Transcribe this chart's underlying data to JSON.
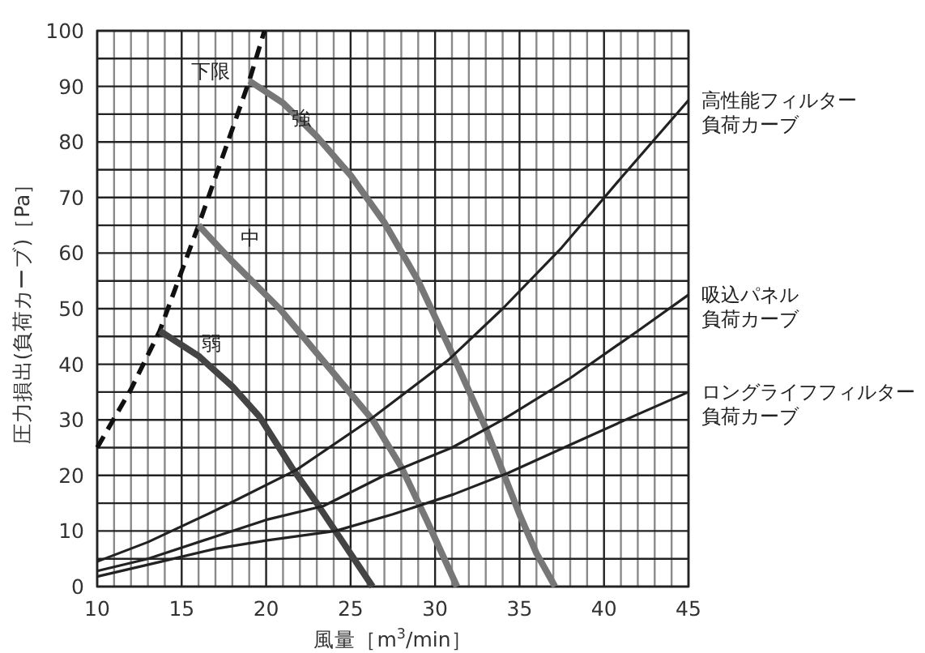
{
  "chart_data": {
    "type": "line",
    "xlabel": "風量［m$^{3}$/min］",
    "ylabel": "圧力損出(負荷カーブ)［Pa］",
    "xlim": [
      10,
      45
    ],
    "ylim": [
      0,
      100
    ],
    "xticks": [
      10,
      {
        "value": 11,
        "label": null
      },
      {
        "value": 12,
        "label": null
      },
      {
        "value": 13,
        "label": null
      },
      {
        "value": 14,
        "label": null
      },
      15,
      {
        "value": 16,
        "label": null
      },
      {
        "value": 17,
        "label": null
      },
      {
        "value": 18,
        "label": null
      },
      {
        "value": 19,
        "label": null
      },
      20,
      {
        "value": 21,
        "label": null
      },
      {
        "value": 22,
        "label": null
      },
      {
        "value": 23,
        "label": null
      },
      {
        "value": 24,
        "label": null
      },
      25,
      {
        "value": 26,
        "label": null
      },
      {
        "value": 27,
        "label": null
      },
      {
        "value": 28,
        "label": null
      },
      {
        "value": 29,
        "label": null
      },
      30,
      {
        "value": 31,
        "label": null
      },
      {
        "value": 32,
        "label": null
      },
      {
        "value": 33,
        "label": null
      },
      {
        "value": 34,
        "label": null
      },
      35,
      {
        "value": 36,
        "label": null
      },
      {
        "value": 37,
        "label": null
      },
      {
        "value": 38,
        "label": null
      },
      {
        "value": 39,
        "label": null
      },
      40,
      {
        "value": 41,
        "label": null
      },
      {
        "value": 42,
        "label": null
      },
      {
        "value": 43,
        "label": null
      },
      {
        "value": 44,
        "label": null
      },
      45
    ],
    "yticks": [
      0,
      {
        "value": 5,
        "label": null
      },
      10,
      {
        "value": 15,
        "label": null
      },
      20,
      {
        "value": 25,
        "label": null
      },
      30,
      {
        "value": 35,
        "label": null
      },
      40,
      {
        "value": 45,
        "label": null
      },
      50,
      {
        "value": 55,
        "label": null
      },
      60,
      {
        "value": 65,
        "label": null
      },
      70,
      {
        "value": 75,
        "label": null
      },
      80,
      {
        "value": 85,
        "label": null
      },
      90,
      {
        "value": 95,
        "label": null
      },
      100
    ],
    "grid": true,
    "marker": "none",
    "series": [
      {
        "name": "下限",
        "color": "#111111",
        "line_style": "dashed",
        "x": [
          10,
          12,
          13.7,
          16,
          19,
          19.9
        ],
        "values": [
          25,
          35.5,
          46,
          65,
          91,
          100
        ]
      },
      {
        "name": "強",
        "color": "#777777",
        "x": [
          19,
          21,
          23,
          25,
          27,
          29,
          31,
          33,
          35,
          36,
          37.1
        ],
        "values": [
          91,
          87,
          81,
          74,
          65.5,
          55,
          42,
          28.5,
          13,
          6,
          0
        ]
      },
      {
        "name": "中",
        "color": "#777777",
        "x": [
          16,
          18,
          20.8,
          23,
          26.3,
          28,
          29.5,
          31.3
        ],
        "values": [
          65,
          58.5,
          50,
          42,
          30,
          21.5,
          12,
          0
        ]
      },
      {
        "name": "弱",
        "color": "#444444",
        "x": [
          13.7,
          16,
          18,
          19.6,
          21.5,
          23,
          24.1,
          25.2,
          26.3
        ],
        "values": [
          46,
          41.5,
          36,
          30.6,
          21.5,
          15,
          10,
          5,
          0
        ]
      },
      {
        "name": "高性能フィルター負荷カーブ",
        "color": "#222222",
        "x": [
          10,
          13,
          17,
          21.8,
          26,
          30.8,
          34,
          37.5,
          41,
          45
        ],
        "values": [
          4.5,
          8,
          13.7,
          21,
          29.7,
          40.8,
          50,
          61,
          73.5,
          87.5
        ]
      },
      {
        "name": "吸込パネル負荷カーブ",
        "color": "#222222",
        "x": [
          10,
          13,
          17,
          20,
          23.4,
          27,
          31,
          34,
          38,
          42,
          45
        ],
        "values": [
          2.8,
          5,
          9,
          12,
          14.5,
          20,
          25,
          30,
          37.5,
          46,
          52.5
        ]
      },
      {
        "name": "ロングライフフィルター負荷カーブ",
        "color": "#222222",
        "x": [
          10,
          13.8,
          17,
          20,
          24.1,
          27.5,
          31.1,
          34.3,
          38,
          42,
          45
        ],
        "values": [
          1.8,
          4.5,
          6.8,
          8.3,
          10,
          13,
          16.6,
          20.4,
          25.5,
          31,
          35
        ]
      }
    ]
  }
}
